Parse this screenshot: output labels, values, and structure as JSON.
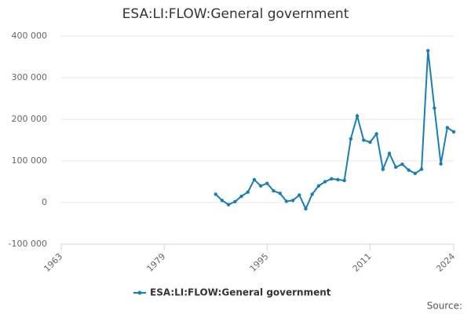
{
  "chart_data": {
    "type": "line",
    "title": "ESA:LI:FLOW:General government",
    "x": [
      1987,
      1988,
      1989,
      1990,
      1991,
      1992,
      1993,
      1994,
      1995,
      1996,
      1997,
      1998,
      1999,
      2000,
      2001,
      2002,
      2003,
      2004,
      2005,
      2006,
      2007,
      2008,
      2009,
      2010,
      2011,
      2012,
      2013,
      2014,
      2015,
      2016,
      2017,
      2018,
      2019,
      2020,
      2021,
      2022,
      2023,
      2024
    ],
    "series": [
      {
        "name": "ESA:LI:FLOW:General government",
        "color": "#1a7db6",
        "values": [
          20000,
          5000,
          -5000,
          2000,
          15000,
          25000,
          55000,
          40000,
          46000,
          28000,
          22000,
          3000,
          5000,
          18000,
          -15000,
          20000,
          40000,
          50000,
          57000,
          55000,
          53000,
          153000,
          208000,
          150000,
          145000,
          165000,
          80000,
          118000,
          85000,
          92000,
          78000,
          70000,
          80000,
          365000,
          227000,
          93000,
          180000,
          170000
        ]
      }
    ],
    "xlim": [
      1963,
      2024
    ],
    "xticks": [
      1963,
      1979,
      1995,
      2011,
      2024
    ],
    "ylim": [
      -100000,
      400000
    ],
    "yticks": [
      {
        "value": -100000,
        "label": "-100 000"
      },
      0,
      {
        "value": 100000,
        "label": "100 000"
      },
      {
        "value": 200000,
        "label": "200 000"
      },
      {
        "value": 300000,
        "label": "300 000"
      },
      {
        "value": 400000,
        "label": "400 000"
      }
    ],
    "grid": true,
    "legend": "bottom",
    "source_label": "Source:"
  }
}
